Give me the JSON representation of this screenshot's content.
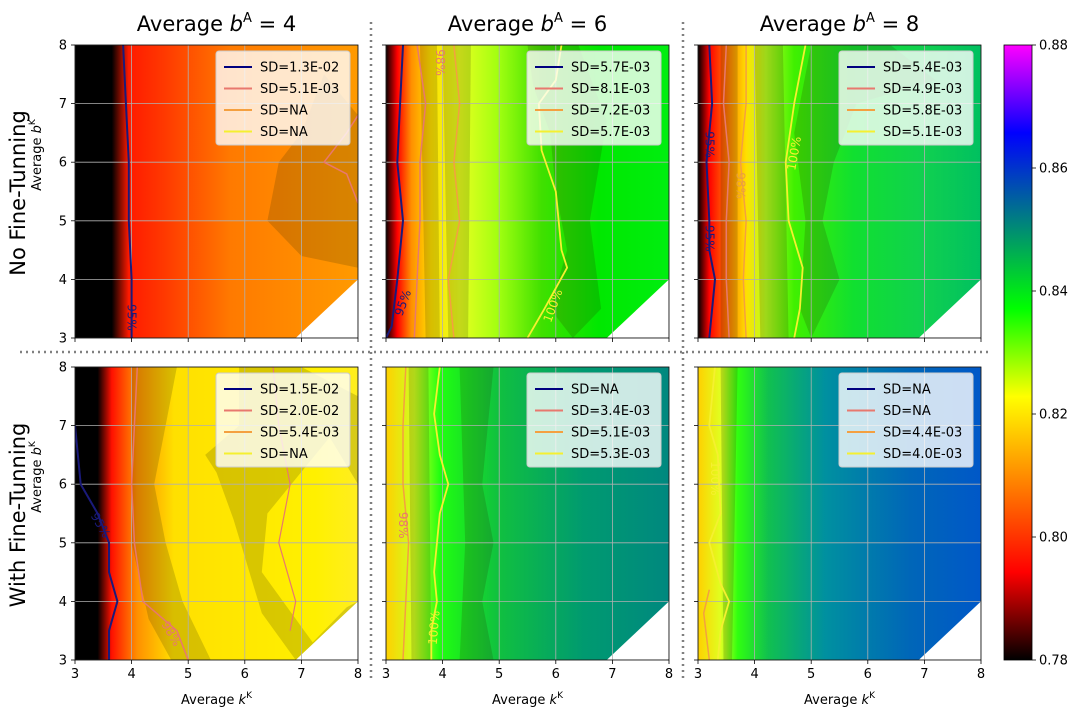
{
  "columns": [
    {
      "title_base": "Average ",
      "title_sym": "b",
      "title_sup": "A",
      "title_eq": " = 4"
    },
    {
      "title_base": "Average ",
      "title_sym": "b",
      "title_sup": "A",
      "title_eq": " = 6"
    },
    {
      "title_base": "Average ",
      "title_sym": "b",
      "title_sup": "A",
      "title_eq": " = 8"
    }
  ],
  "rows": [
    {
      "label": "No Fine-Tunning"
    },
    {
      "label": "With Fine-Tunning"
    }
  ],
  "axis": {
    "xlabel_base": "Average ",
    "xlabel_sym": "k",
    "xlabel_sup": "K",
    "ylabel_base": "Average ",
    "ylabel_sym": "b",
    "ylabel_sup": "K"
  },
  "colorbar": {
    "ticks": [
      "0.78",
      "0.80",
      "0.82",
      "0.84",
      "0.86",
      "0.88"
    ],
    "min": 0.78,
    "max": 0.88,
    "colormap": [
      "#000000",
      "#ff0000",
      "#ff8000",
      "#ffff00",
      "#00ff00",
      "#008080",
      "#0000ff",
      "#ff00ff"
    ]
  },
  "chart_data": {
    "type": "heatmap",
    "x": [
      3,
      4,
      5,
      6,
      7,
      8
    ],
    "y": [
      3,
      4,
      5,
      6,
      7,
      8
    ],
    "xlim": [
      3,
      8
    ],
    "ylim": [
      3,
      8
    ],
    "grid": true,
    "legend_placement": "top-right",
    "legend_series": [
      "Navy",
      "Light coral",
      "Orange",
      "Yellow"
    ],
    "series_colors": [
      "#00007f",
      "#e8786e",
      "#f4a040",
      "#f5f030"
    ],
    "panels": [
      {
        "row": 0,
        "col": 0,
        "value_range": [
          0.79,
          0.83
        ],
        "fill": "mostly red-orange (~0.82-0.83), black band x<3.9",
        "legend": [
          "SD=1.3E-02",
          "SD=5.1E-03",
          "SD=NA",
          "SD=NA"
        ],
        "contour_labels": [
          "95%"
        ]
      },
      {
        "row": 0,
        "col": 1,
        "value_range": [
          0.79,
          0.86
        ],
        "fill": "yellow-green to green",
        "legend": [
          "SD=5.7E-03",
          "SD=8.1E-03",
          "SD=7.2E-03",
          "SD=5.7E-03"
        ],
        "contour_labels": [
          "95%",
          "98%",
          "100%"
        ]
      },
      {
        "row": 0,
        "col": 2,
        "value_range": [
          0.79,
          0.86
        ],
        "fill": "green",
        "legend": [
          "SD=5.4E-03",
          "SD=4.9E-03",
          "SD=5.8E-03",
          "SD=5.1E-03"
        ],
        "contour_labels": [
          "95%",
          "95%",
          "98%",
          "100%"
        ]
      },
      {
        "row": 1,
        "col": 0,
        "value_range": [
          0.79,
          0.84
        ],
        "fill": "yellow-orange",
        "legend": [
          "SD=1.5E-02",
          "SD=2.0E-02",
          "SD=5.4E-03",
          "SD=NA"
        ],
        "contour_labels": [
          "95%",
          "98%"
        ]
      },
      {
        "row": 1,
        "col": 1,
        "value_range": [
          0.82,
          0.87
        ],
        "fill": "green to teal",
        "legend": [
          "SD=NA",
          "SD=3.4E-03",
          "SD=5.1E-03",
          "SD=5.3E-03"
        ],
        "contour_labels": [
          "98%",
          "100%"
        ]
      },
      {
        "row": 1,
        "col": 2,
        "value_range": [
          0.83,
          0.87
        ],
        "fill": "teal to blue",
        "legend": [
          "SD=NA",
          "SD=NA",
          "SD=4.4E-03",
          "SD=4.0E-03"
        ],
        "contour_labels": [
          "100%"
        ]
      }
    ]
  }
}
